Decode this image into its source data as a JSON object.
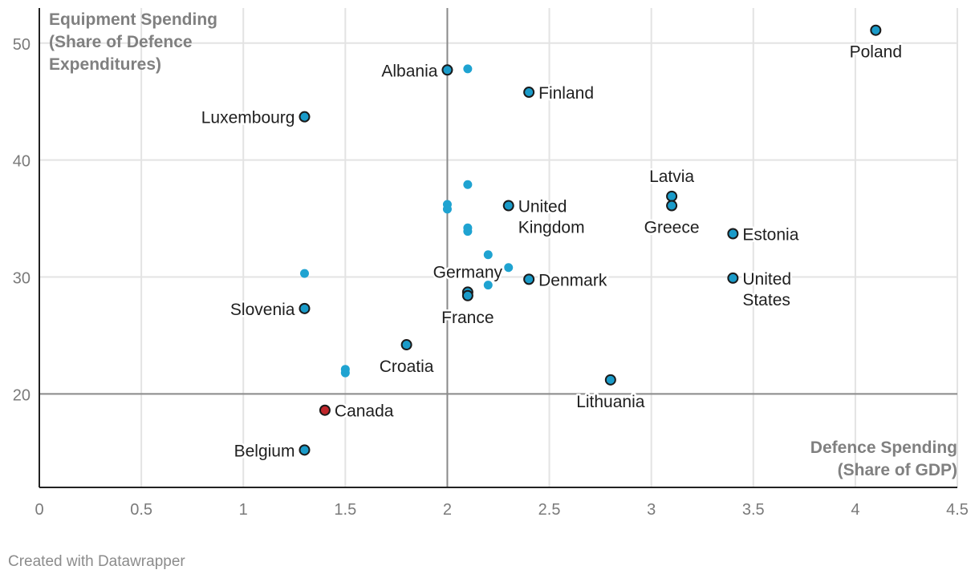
{
  "chart_data": {
    "type": "scatter",
    "xlim": [
      0,
      4.5
    ],
    "ylim": [
      12,
      53
    ],
    "x_ticks": [
      {
        "value": 0,
        "label": "0"
      },
      {
        "value": 0.5,
        "label": "0.5"
      },
      {
        "value": 1,
        "label": "1"
      },
      {
        "value": 1.5,
        "label": "1.5"
      },
      {
        "value": 2,
        "label": "2"
      },
      {
        "value": 2.5,
        "label": "2.5"
      },
      {
        "value": 3,
        "label": "3"
      },
      {
        "value": 3.5,
        "label": "3.5"
      },
      {
        "value": 4,
        "label": "4"
      },
      {
        "value": 4.5,
        "label": "4.5"
      }
    ],
    "y_ticks": [
      {
        "value": 20,
        "label": "20"
      },
      {
        "value": 30,
        "label": "30"
      },
      {
        "value": 40,
        "label": "40"
      },
      {
        "value": 50,
        "label": "50"
      }
    ],
    "reference_lines": {
      "x": 2,
      "y": 20
    },
    "x_title": [
      "Defence Spending",
      "(Share of GDP)"
    ],
    "y_title": [
      "Equipment Spending",
      "(Share of Defence",
      "Expenditures)"
    ],
    "colors": {
      "labeled": "#1a9bc9",
      "unlabeled": "#1fa3d1",
      "highlight": "#c0262b",
      "outline": "#1a1a1a"
    },
    "labeled_points": [
      {
        "name": "Poland",
        "lines": [
          "Poland"
        ],
        "x": 4.1,
        "y": 51.1,
        "pos": "below",
        "color": "labeled"
      },
      {
        "name": "Albania",
        "lines": [
          "Albania"
        ],
        "x": 2.0,
        "y": 47.7,
        "pos": "left",
        "color": "labeled"
      },
      {
        "name": "Finland",
        "lines": [
          "Finland"
        ],
        "x": 2.4,
        "y": 45.8,
        "pos": "right",
        "color": "labeled"
      },
      {
        "name": "Luxembourg",
        "lines": [
          "Luxembourg"
        ],
        "x": 1.3,
        "y": 43.7,
        "pos": "left",
        "color": "labeled"
      },
      {
        "name": "Latvia",
        "lines": [
          "Latvia"
        ],
        "x": 3.1,
        "y": 36.9,
        "pos": "above",
        "color": "labeled"
      },
      {
        "name": "Greece",
        "lines": [
          "Greece"
        ],
        "x": 3.1,
        "y": 36.1,
        "pos": "below",
        "color": "labeled"
      },
      {
        "name": "United Kingdom",
        "lines": [
          "United",
          "Kingdom"
        ],
        "x": 2.3,
        "y": 36.1,
        "pos": "right",
        "color": "labeled"
      },
      {
        "name": "Estonia",
        "lines": [
          "Estonia"
        ],
        "x": 3.4,
        "y": 33.7,
        "pos": "right",
        "color": "labeled"
      },
      {
        "name": "Denmark",
        "lines": [
          "Denmark"
        ],
        "x": 2.4,
        "y": 29.8,
        "pos": "right",
        "color": "labeled"
      },
      {
        "name": "United States",
        "lines": [
          "United",
          "States"
        ],
        "x": 3.4,
        "y": 29.9,
        "pos": "right",
        "color": "labeled"
      },
      {
        "name": "Germany",
        "lines": [
          "Germany"
        ],
        "x": 2.1,
        "y": 28.7,
        "pos": "above",
        "color": "labeled"
      },
      {
        "name": "France",
        "lines": [
          "France"
        ],
        "x": 2.1,
        "y": 28.4,
        "pos": "below",
        "color": "labeled"
      },
      {
        "name": "Slovenia",
        "lines": [
          "Slovenia"
        ],
        "x": 1.3,
        "y": 27.3,
        "pos": "left",
        "color": "labeled"
      },
      {
        "name": "Croatia",
        "lines": [
          "Croatia"
        ],
        "x": 1.8,
        "y": 24.2,
        "pos": "below",
        "color": "labeled"
      },
      {
        "name": "Lithuania",
        "lines": [
          "Lithuania"
        ],
        "x": 2.8,
        "y": 21.2,
        "pos": "below",
        "color": "labeled"
      },
      {
        "name": "Canada",
        "lines": [
          "Canada"
        ],
        "x": 1.4,
        "y": 18.6,
        "pos": "right",
        "color": "highlight"
      },
      {
        "name": "Belgium",
        "lines": [
          "Belgium"
        ],
        "x": 1.3,
        "y": 15.2,
        "pos": "left",
        "color": "labeled"
      }
    ],
    "unlabeled_points": [
      {
        "x": 2.1,
        "y": 47.8
      },
      {
        "x": 2.1,
        "y": 37.9
      },
      {
        "x": 2.0,
        "y": 36.2
      },
      {
        "x": 2.0,
        "y": 35.8
      },
      {
        "x": 2.1,
        "y": 34.2
      },
      {
        "x": 2.1,
        "y": 33.9
      },
      {
        "x": 2.2,
        "y": 31.9
      },
      {
        "x": 2.3,
        "y": 30.8
      },
      {
        "x": 1.3,
        "y": 30.3
      },
      {
        "x": 2.2,
        "y": 29.3
      },
      {
        "x": 1.5,
        "y": 22.1
      },
      {
        "x": 1.5,
        "y": 21.8
      }
    ]
  },
  "footer": {
    "credit": "Created with Datawrapper"
  }
}
